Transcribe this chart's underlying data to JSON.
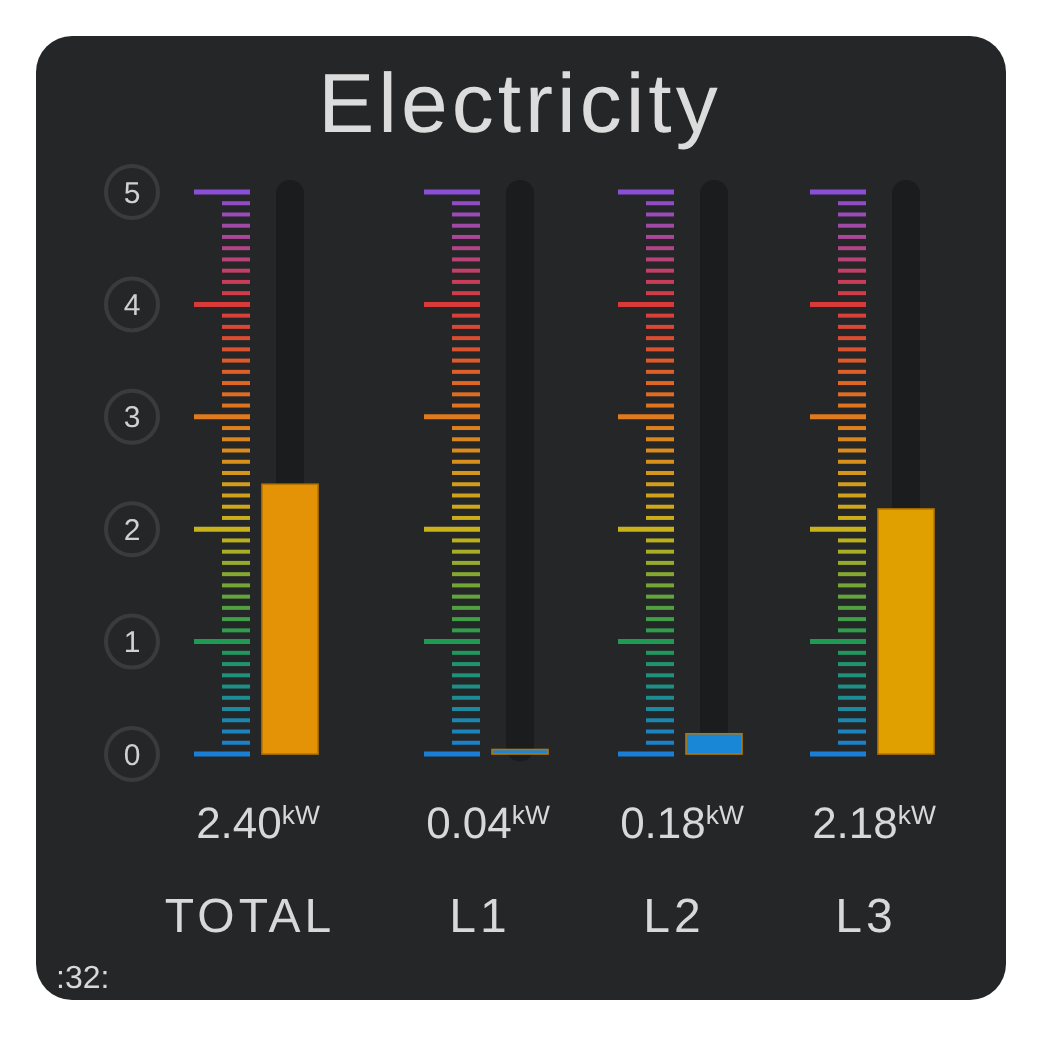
{
  "chart_data": {
    "type": "bar",
    "title": "Electricity",
    "categories": [
      "TOTAL",
      "L1",
      "L2",
      "L3"
    ],
    "stacked": true,
    "series": [
      {
        "values": [
          2.4,
          0.04,
          0.18,
          2.18
        ],
        "colors": [
          "#e39305",
          "#1a86d6",
          "#1a86d6",
          "#e0a000"
        ],
        "value_labels": [
          "2.40$^{kW}$",
          "0.04$^{kW}$",
          "0.18$^{kW}$",
          "2.18$^{kW}$"
        ]
      },
      {
        "values": [
          2.6,
          4.96,
          4.82,
          2.82
        ],
        "color": "#1b1c1d"
      }
    ],
    "ylim": [
      0,
      5
    ],
    "yticks": [
      0,
      1,
      2,
      3,
      4,
      5
    ],
    "annotations": [
      ":32:"
    ]
  }
}
